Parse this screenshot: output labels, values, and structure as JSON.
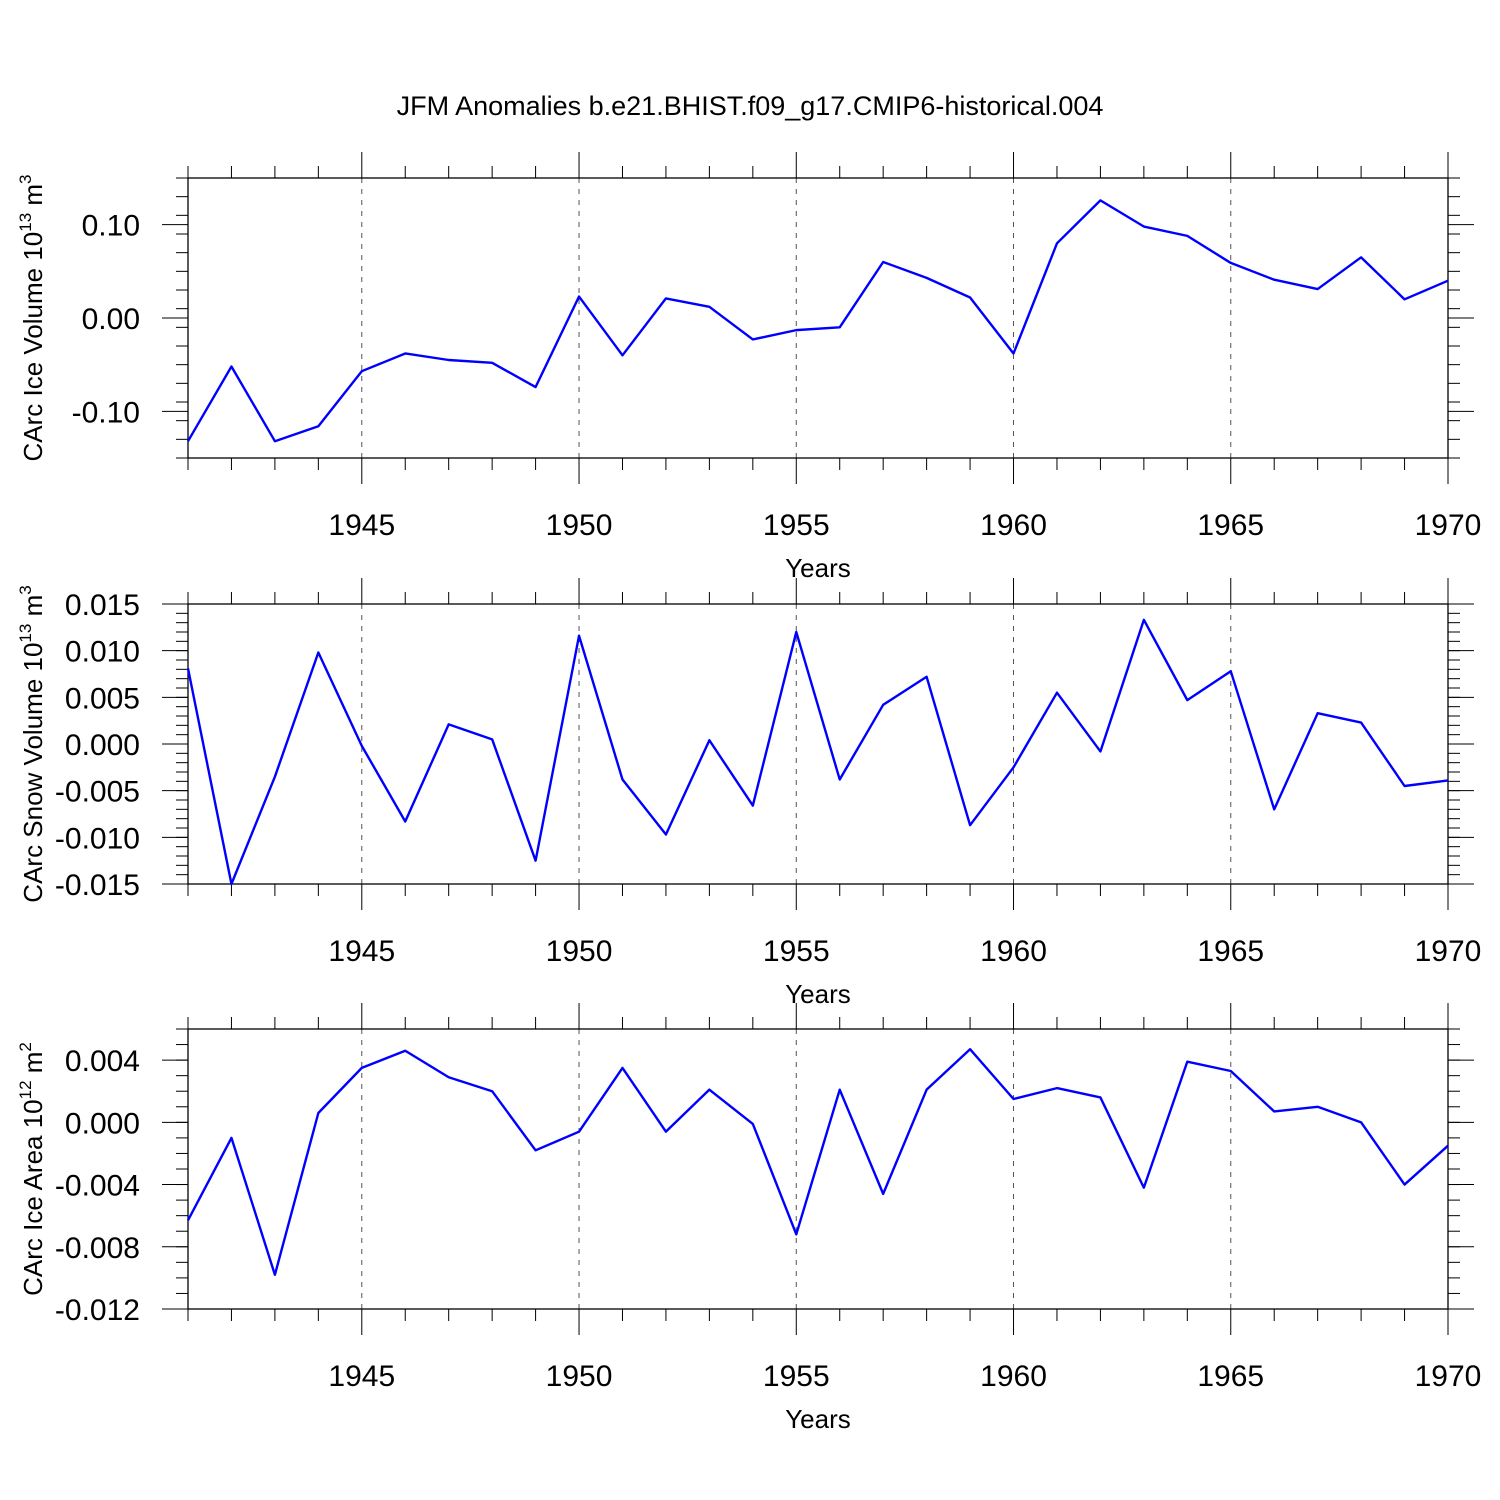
{
  "title": "JFM Anomalies b.e21.BHIST.f09_g17.CMIP6-historical.004",
  "colors": {
    "series": "#0000ff",
    "axis": "#000000",
    "grid": "#555555"
  },
  "chart_data": [
    {
      "type": "line",
      "title": "JFM Anomalies b.e21.BHIST.f09_g17.CMIP6-historical.004",
      "xlabel": "Years",
      "ylabel": "CArc Ice Volume 10",
      "ylabel_exp": "13",
      "ylabel_unit": " m",
      "ylabel_unit_exp": "3",
      "xlim": [
        1941,
        1970
      ],
      "ylim": [
        -0.15,
        0.15
      ],
      "major_x_ticks": [
        1945,
        1950,
        1955,
        1960,
        1965,
        1970
      ],
      "x_tick_labels": [
        "1945",
        "1950",
        "1955",
        "1960",
        "1965",
        "1970"
      ],
      "y_ticks": [
        0.1,
        0.0,
        -0.1
      ],
      "y_tick_labels": [
        "0.10",
        "0.00",
        "-0.10"
      ],
      "y_minor_step": 0.02,
      "grid": "vertical dashed at major x ticks",
      "x": [
        1941,
        1942,
        1943,
        1944,
        1945,
        1946,
        1947,
        1948,
        1949,
        1950,
        1951,
        1952,
        1953,
        1954,
        1955,
        1956,
        1957,
        1958,
        1959,
        1960,
        1961,
        1962,
        1963,
        1964,
        1965,
        1966,
        1967,
        1968,
        1969,
        1970
      ],
      "values": [
        -0.132,
        -0.052,
        -0.132,
        -0.116,
        -0.057,
        -0.038,
        -0.045,
        -0.048,
        -0.074,
        0.023,
        -0.04,
        0.021,
        0.012,
        -0.023,
        -0.013,
        -0.01,
        0.06,
        0.043,
        0.022,
        -0.038,
        0.08,
        0.126,
        0.098,
        0.088,
        0.059,
        0.041,
        0.031,
        0.065,
        0.02,
        0.04
      ]
    },
    {
      "type": "line",
      "xlabel": "Years",
      "ylabel": "CArc Snow Volume 10",
      "ylabel_exp": "13",
      "ylabel_unit": " m",
      "ylabel_unit_exp": "3",
      "xlim": [
        1941,
        1970
      ],
      "ylim": [
        -0.015,
        0.015
      ],
      "major_x_ticks": [
        1945,
        1950,
        1955,
        1960,
        1965,
        1970
      ],
      "x_tick_labels": [
        "1945",
        "1950",
        "1955",
        "1960",
        "1965",
        "1970"
      ],
      "y_ticks": [
        0.015,
        0.01,
        0.005,
        0.0,
        -0.005,
        -0.01,
        -0.015
      ],
      "y_tick_labels": [
        "0.015",
        "0.010",
        "0.005",
        "0.000",
        "-0.005",
        "-0.010",
        "-0.015"
      ],
      "y_minor_step": 0.001,
      "grid": "vertical dashed at major x ticks",
      "x": [
        1941,
        1942,
        1943,
        1944,
        1945,
        1946,
        1947,
        1948,
        1949,
        1950,
        1951,
        1952,
        1953,
        1954,
        1955,
        1956,
        1957,
        1958,
        1959,
        1960,
        1961,
        1962,
        1963,
        1964,
        1965,
        1966,
        1967,
        1968,
        1969,
        1970
      ],
      "values": [
        0.0081,
        -0.015,
        -0.0035,
        0.0098,
        -0.0002,
        -0.0083,
        0.0021,
        0.0005,
        -0.0125,
        0.0116,
        -0.0038,
        -0.0097,
        0.0004,
        -0.0066,
        0.012,
        -0.0038,
        0.0042,
        0.0072,
        -0.0087,
        -0.0025,
        0.0055,
        -0.0008,
        0.0133,
        0.0047,
        0.0078,
        -0.007,
        0.0033,
        0.0023,
        -0.0045,
        -0.0039
      ]
    },
    {
      "type": "line",
      "xlabel": "Years",
      "ylabel": "CArc Ice Area 10",
      "ylabel_exp": "12",
      "ylabel_unit": " m",
      "ylabel_unit_exp": "2",
      "xlim": [
        1941,
        1970
      ],
      "ylim": [
        -0.012,
        0.006
      ],
      "major_x_ticks": [
        1945,
        1950,
        1955,
        1960,
        1965,
        1970
      ],
      "x_tick_labels": [
        "1945",
        "1950",
        "1955",
        "1960",
        "1965",
        "1970"
      ],
      "y_ticks": [
        0.004,
        0.0,
        -0.004,
        -0.008,
        -0.012
      ],
      "y_tick_labels": [
        "0.004",
        "0.000",
        "-0.004",
        "-0.008",
        "-0.012"
      ],
      "y_minor_step": 0.001,
      "grid": "vertical dashed at major x ticks",
      "x": [
        1941,
        1942,
        1943,
        1944,
        1945,
        1946,
        1947,
        1948,
        1949,
        1950,
        1951,
        1952,
        1953,
        1954,
        1955,
        1956,
        1957,
        1958,
        1959,
        1960,
        1961,
        1962,
        1963,
        1964,
        1965,
        1966,
        1967,
        1968,
        1969,
        1970
      ],
      "values": [
        -0.0063,
        -0.001,
        -0.0098,
        0.0006,
        0.0035,
        0.0046,
        0.0029,
        0.002,
        -0.0018,
        -0.0006,
        0.0035,
        -0.0006,
        0.0021,
        -0.0001,
        -0.0072,
        0.0021,
        -0.0046,
        0.0021,
        0.0047,
        0.0015,
        0.0022,
        0.0016,
        -0.0042,
        0.0039,
        0.0033,
        0.0007,
        0.001,
        0.0,
        -0.004,
        -0.0015
      ]
    }
  ]
}
